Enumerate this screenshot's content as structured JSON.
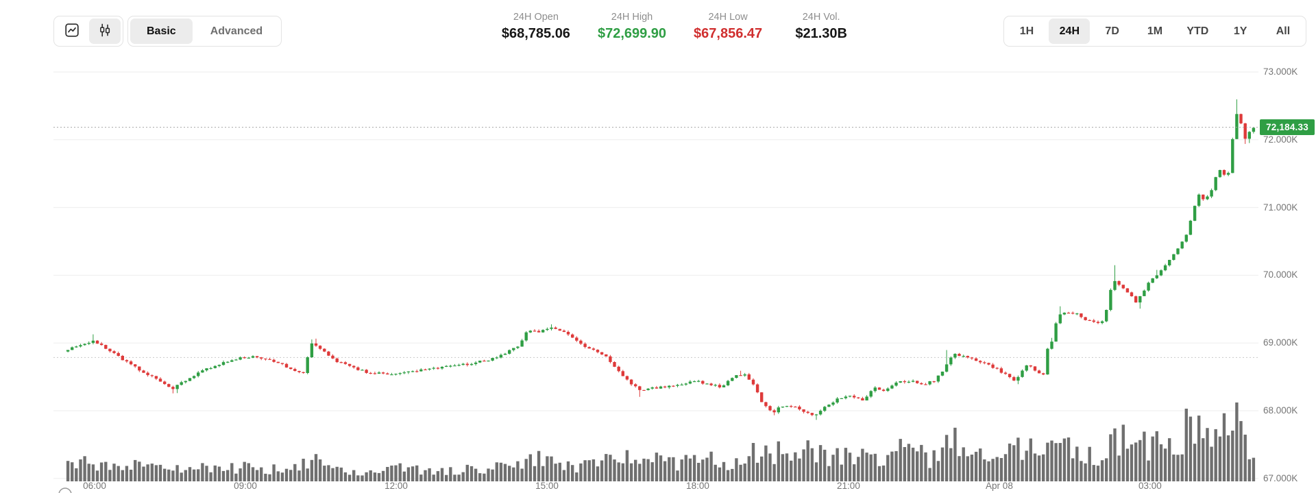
{
  "toolbar": {
    "chart_type_switcher": {
      "options": [
        {
          "name": "line-chart",
          "selected": false
        },
        {
          "name": "candlestick",
          "selected": true
        }
      ]
    },
    "mode_tabs": [
      {
        "label": "Basic",
        "selected": true
      },
      {
        "label": "Advanced",
        "selected": false
      }
    ],
    "stats": [
      {
        "label": "24H Open",
        "value": "$68,785.06",
        "color": "#171717"
      },
      {
        "label": "24H High",
        "value": "$72,699.90",
        "color": "#2f9e44"
      },
      {
        "label": "24H Low",
        "value": "$67,856.47",
        "color": "#d02f2f"
      },
      {
        "label": "24H Vol.",
        "value": "$21.30B",
        "color": "#171717"
      }
    ],
    "range_tabs": [
      "1H",
      "24H",
      "7D",
      "1M",
      "YTD",
      "1Y",
      "All"
    ],
    "selected_range": "24H"
  },
  "axes": {
    "y_ticks": [
      {
        "label": "73.000K",
        "value": 73000
      },
      {
        "label": "72.000K",
        "value": 72000
      },
      {
        "label": "71.000K",
        "value": 71000
      },
      {
        "label": "70.000K",
        "value": 70000
      },
      {
        "label": "69.000K",
        "value": 69000
      },
      {
        "label": "68.000K",
        "value": 68000
      },
      {
        "label": "67.000K",
        "value": 67000
      }
    ],
    "x_ticks": [
      {
        "label": "06:00",
        "hour": 6
      },
      {
        "label": "09:00",
        "hour": 9
      },
      {
        "label": "12:00",
        "hour": 12
      },
      {
        "label": "15:00",
        "hour": 15
      },
      {
        "label": "18:00",
        "hour": 18
      },
      {
        "label": "21:00",
        "hour": 21
      },
      {
        "label": "Apr 08",
        "hour": 24
      },
      {
        "label": "03:00",
        "hour": 27
      }
    ]
  },
  "price_tag": {
    "value": "72,184.33",
    "price": 72184.33,
    "color": "#2f9e44"
  },
  "reference_lines": {
    "open_price": 68785.06,
    "last_price": 72184.33
  },
  "colors": {
    "candle_up": "#2f9e44",
    "candle_down": "#de3a3a",
    "volume_bar": "#6f6f6f",
    "gridline": "#ededed",
    "axis_text": "#757575"
  },
  "chart_data": {
    "type": "candlestick",
    "interval_minutes": 5,
    "candle_count": 283,
    "time_start_hour": 5.43,
    "time_end_hour": 29.1,
    "ylim": [
      67000,
      73000
    ],
    "summary": {
      "open": 68785.06,
      "high": 72699.9,
      "low": 67856.47,
      "close": 72184.33,
      "volume": "$21.30B"
    },
    "price_anchors": [
      [
        5.43,
        68880
      ],
      [
        5.6,
        68940
      ],
      [
        5.85,
        68990
      ],
      [
        6.02,
        69030
      ],
      [
        6.18,
        68960
      ],
      [
        6.4,
        68870
      ],
      [
        6.62,
        68750
      ],
      [
        6.85,
        68640
      ],
      [
        7.1,
        68540
      ],
      [
        7.35,
        68430
      ],
      [
        7.6,
        68330
      ],
      [
        7.82,
        68430
      ],
      [
        8.1,
        68560
      ],
      [
        8.45,
        68670
      ],
      [
        8.8,
        68760
      ],
      [
        9.15,
        68800
      ],
      [
        9.5,
        68760
      ],
      [
        9.8,
        68670
      ],
      [
        10.05,
        68590
      ],
      [
        10.2,
        68565
      ],
      [
        10.36,
        69010
      ],
      [
        10.55,
        68910
      ],
      [
        10.8,
        68750
      ],
      [
        11.1,
        68660
      ],
      [
        11.45,
        68570
      ],
      [
        11.85,
        68545
      ],
      [
        12.25,
        68565
      ],
      [
        12.65,
        68615
      ],
      [
        13.05,
        68650
      ],
      [
        13.45,
        68685
      ],
      [
        13.85,
        68745
      ],
      [
        14.2,
        68840
      ],
      [
        14.5,
        68970
      ],
      [
        14.65,
        69190
      ],
      [
        14.88,
        69150
      ],
      [
        15.1,
        69235
      ],
      [
        15.32,
        69185
      ],
      [
        15.57,
        69070
      ],
      [
        15.78,
        68950
      ],
      [
        15.98,
        68885
      ],
      [
        16.17,
        68835
      ],
      [
        16.38,
        68670
      ],
      [
        16.62,
        68470
      ],
      [
        16.87,
        68310
      ],
      [
        17.12,
        68330
      ],
      [
        17.42,
        68360
      ],
      [
        17.72,
        68400
      ],
      [
        18.02,
        68430
      ],
      [
        18.28,
        68395
      ],
      [
        18.52,
        68340
      ],
      [
        18.77,
        68525
      ],
      [
        18.97,
        68535
      ],
      [
        19.12,
        68430
      ],
      [
        19.32,
        68130
      ],
      [
        19.52,
        67960
      ],
      [
        19.72,
        68075
      ],
      [
        19.97,
        68060
      ],
      [
        20.17,
        67985
      ],
      [
        20.35,
        67920
      ],
      [
        20.57,
        68060
      ],
      [
        20.82,
        68170
      ],
      [
        21.07,
        68215
      ],
      [
        21.32,
        68150
      ],
      [
        21.57,
        68350
      ],
      [
        21.77,
        68290
      ],
      [
        22.02,
        68420
      ],
      [
        22.27,
        68440
      ],
      [
        22.52,
        68390
      ],
      [
        22.77,
        68450
      ],
      [
        22.97,
        68640
      ],
      [
        23.13,
        68840
      ],
      [
        23.37,
        68785
      ],
      [
        23.62,
        68730
      ],
      [
        23.87,
        68665
      ],
      [
        24.12,
        68560
      ],
      [
        24.35,
        68430
      ],
      [
        24.5,
        68600
      ],
      [
        24.62,
        68690
      ],
      [
        24.78,
        68560
      ],
      [
        24.93,
        68530
      ],
      [
        25.02,
        69005
      ],
      [
        25.1,
        69020
      ],
      [
        25.2,
        69390
      ],
      [
        25.37,
        69450
      ],
      [
        25.57,
        69435
      ],
      [
        25.77,
        69345
      ],
      [
        25.97,
        69295
      ],
      [
        26.13,
        69330
      ],
      [
        26.3,
        69950
      ],
      [
        26.47,
        69835
      ],
      [
        26.62,
        69715
      ],
      [
        26.77,
        69605
      ],
      [
        26.9,
        69750
      ],
      [
        27.02,
        69890
      ],
      [
        27.2,
        70030
      ],
      [
        27.37,
        70180
      ],
      [
        27.52,
        70320
      ],
      [
        27.64,
        70450
      ],
      [
        27.77,
        70620
      ],
      [
        27.9,
        70950
      ],
      [
        28.02,
        71200
      ],
      [
        28.13,
        71080
      ],
      [
        28.26,
        71260
      ],
      [
        28.38,
        71500
      ],
      [
        28.46,
        71590
      ],
      [
        28.55,
        71430
      ],
      [
        28.63,
        71550
      ],
      [
        28.73,
        72430
      ],
      [
        28.85,
        72230
      ],
      [
        28.94,
        72010
      ],
      [
        29.03,
        72120
      ],
      [
        29.1,
        72184
      ]
    ],
    "high_wick_spikes": [
      [
        5.95,
        90
      ],
      [
        10.36,
        50
      ],
      [
        15.1,
        25
      ],
      [
        18.85,
        60
      ],
      [
        22.97,
        200
      ],
      [
        25.02,
        40
      ],
      [
        25.2,
        110
      ],
      [
        26.3,
        230
      ],
      [
        27.15,
        80
      ],
      [
        28.73,
        210
      ]
    ],
    "low_wick_spikes": [
      [
        7.6,
        40
      ],
      [
        16.87,
        100
      ],
      [
        19.52,
        40
      ],
      [
        20.35,
        50
      ],
      [
        24.4,
        40
      ],
      [
        26.77,
        90
      ],
      [
        28.94,
        60
      ]
    ],
    "volume_anchors": [
      [
        5.43,
        22
      ],
      [
        6.0,
        28
      ],
      [
        6.5,
        20
      ],
      [
        7.0,
        24
      ],
      [
        7.5,
        19
      ],
      [
        8.0,
        21
      ],
      [
        8.5,
        17
      ],
      [
        9.0,
        21
      ],
      [
        9.5,
        17
      ],
      [
        10.0,
        19
      ],
      [
        10.36,
        30
      ],
      [
        10.8,
        17
      ],
      [
        11.3,
        14
      ],
      [
        11.8,
        20
      ],
      [
        12.3,
        17
      ],
      [
        12.8,
        14
      ],
      [
        13.3,
        18
      ],
      [
        13.8,
        17
      ],
      [
        14.3,
        24
      ],
      [
        14.65,
        38
      ],
      [
        15.1,
        28
      ],
      [
        15.6,
        23
      ],
      [
        16.1,
        28
      ],
      [
        16.6,
        34
      ],
      [
        16.9,
        38
      ],
      [
        17.3,
        26
      ],
      [
        17.8,
        28
      ],
      [
        18.2,
        33
      ],
      [
        18.6,
        28
      ],
      [
        19.0,
        33
      ],
      [
        19.35,
        52
      ],
      [
        19.6,
        42
      ],
      [
        20.0,
        38
      ],
      [
        20.35,
        48
      ],
      [
        20.7,
        33
      ],
      [
        21.1,
        38
      ],
      [
        21.5,
        33
      ],
      [
        22.0,
        44
      ],
      [
        22.4,
        38
      ],
      [
        22.8,
        33
      ],
      [
        23.0,
        68
      ],
      [
        23.2,
        48
      ],
      [
        23.6,
        33
      ],
      [
        24.0,
        38
      ],
      [
        24.4,
        52
      ],
      [
        24.8,
        38
      ],
      [
        25.2,
        58
      ],
      [
        25.5,
        43
      ],
      [
        26.0,
        33
      ],
      [
        26.3,
        66
      ],
      [
        26.8,
        48
      ],
      [
        27.2,
        58
      ],
      [
        27.5,
        43
      ],
      [
        27.8,
        100
      ],
      [
        27.95,
        70
      ],
      [
        28.2,
        52
      ],
      [
        28.45,
        85
      ],
      [
        28.6,
        60
      ],
      [
        28.73,
        108
      ],
      [
        28.85,
        66
      ],
      [
        29.0,
        52
      ],
      [
        29.1,
        45
      ]
    ]
  }
}
